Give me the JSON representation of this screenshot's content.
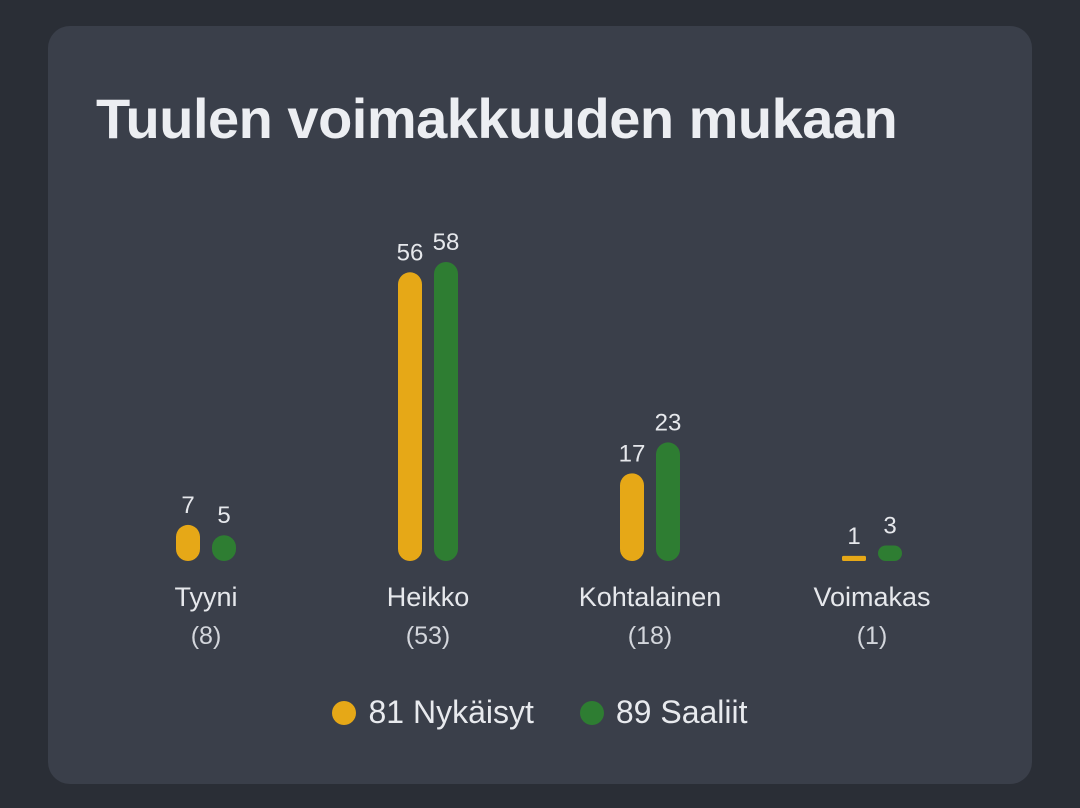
{
  "chart_data": {
    "type": "bar",
    "title": "Tuulen voimakkuuden mukaan",
    "categories": [
      "Tyyni",
      "Heikko",
      "Kohtalainen",
      "Voimakas"
    ],
    "category_counts": [
      "(8)",
      "(53)",
      "(18)",
      "(1)"
    ],
    "series": [
      {
        "name": "Nykäisyt",
        "values": [
          7,
          56,
          17,
          1
        ],
        "color": "#e6a817"
      },
      {
        "name": "Saaliit",
        "values": [
          5,
          58,
          23,
          3
        ],
        "color": "#2e7d32"
      }
    ],
    "legend": [
      {
        "count": "81",
        "label": "Nykäisyt"
      },
      {
        "count": "89",
        "label": "Saaliit"
      }
    ],
    "legend_position": "bottom",
    "grid": false,
    "ylim": [
      0,
      58
    ]
  },
  "colors": {
    "background": "#2a2e36",
    "card": "#3a3f4a",
    "text": "#e6e8ec"
  }
}
